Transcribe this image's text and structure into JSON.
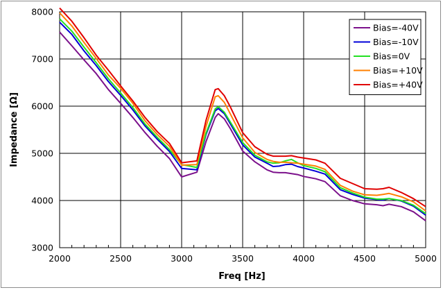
{
  "chart_data": {
    "type": "line",
    "xlabel": "Freq [Hz]",
    "ylabel": "Impedance [Ω]",
    "xlim": [
      2000,
      5000
    ],
    "ylim": [
      3000,
      8000
    ],
    "xticks": [
      "2000",
      "2500",
      "3000",
      "3500",
      "4000",
      "4500",
      "5000"
    ],
    "yticks": [
      "3000",
      "4000",
      "5000",
      "6000",
      "7000",
      "8000"
    ],
    "x_minor_step": 100,
    "grid": true,
    "legend_position": "top-right",
    "x": [
      2000,
      2100,
      2200,
      2300,
      2400,
      2500,
      2600,
      2700,
      2800,
      2900,
      3000,
      3125,
      3200,
      3275,
      3300,
      3350,
      3400,
      3500,
      3600,
      3700,
      3750,
      3800,
      3850,
      3900,
      3950,
      4000,
      4100,
      4175,
      4300,
      4400,
      4500,
      4600,
      4650,
      4700,
      4800,
      4900,
      5000
    ],
    "series": [
      {
        "name": "Bias=-40V",
        "color": "#7b108b",
        "values": [
          7570,
          7280,
          6980,
          6690,
          6350,
          6060,
          5760,
          5440,
          5150,
          4890,
          4500,
          4600,
          5250,
          5760,
          5840,
          5730,
          5520,
          5050,
          4820,
          4650,
          4600,
          4590,
          4590,
          4570,
          4550,
          4510,
          4460,
          4400,
          4100,
          4000,
          3930,
          3910,
          3890,
          3920,
          3870,
          3760,
          3570
        ]
      },
      {
        "name": "Bias=-10V",
        "color": "#0000d8",
        "values": [
          7780,
          7520,
          7170,
          6860,
          6520,
          6230,
          5920,
          5580,
          5300,
          5040,
          4680,
          4650,
          5400,
          5900,
          5950,
          5840,
          5620,
          5180,
          4920,
          4790,
          4720,
          4730,
          4760,
          4770,
          4720,
          4690,
          4620,
          4560,
          4230,
          4130,
          4050,
          4020,
          4010,
          4040,
          3990,
          3880,
          3690
        ]
      },
      {
        "name": "Bias=0V",
        "color": "#22e022",
        "values": [
          7850,
          7590,
          7250,
          6920,
          6580,
          6280,
          5970,
          5620,
          5340,
          5080,
          4760,
          4700,
          5430,
          5940,
          5990,
          5870,
          5660,
          5230,
          4960,
          4820,
          4790,
          4800,
          4840,
          4870,
          4800,
          4740,
          4680,
          4610,
          4270,
          4160,
          4070,
          4030,
          4030,
          4040,
          4000,
          3900,
          3720
        ]
      },
      {
        "name": "Bias=+10V",
        "color": "#ff8000",
        "values": [
          7980,
          7700,
          7350,
          7010,
          6660,
          6380,
          6060,
          5690,
          5400,
          5150,
          4750,
          4760,
          5570,
          6200,
          6220,
          6080,
          5830,
          5330,
          5020,
          4870,
          4830,
          4810,
          4810,
          4800,
          4790,
          4770,
          4730,
          4660,
          4320,
          4200,
          4120,
          4110,
          4130,
          4150,
          4080,
          3970,
          3780
        ]
      },
      {
        "name": "Bias=+40V",
        "color": "#e00000",
        "values": [
          8080,
          7800,
          7450,
          7080,
          6760,
          6430,
          6110,
          5760,
          5460,
          5210,
          4800,
          4840,
          5700,
          6350,
          6370,
          6220,
          5980,
          5440,
          5140,
          4980,
          4940,
          4940,
          4940,
          4950,
          4920,
          4900,
          4860,
          4790,
          4470,
          4360,
          4250,
          4240,
          4250,
          4280,
          4170,
          4040,
          3870
        ]
      }
    ]
  }
}
